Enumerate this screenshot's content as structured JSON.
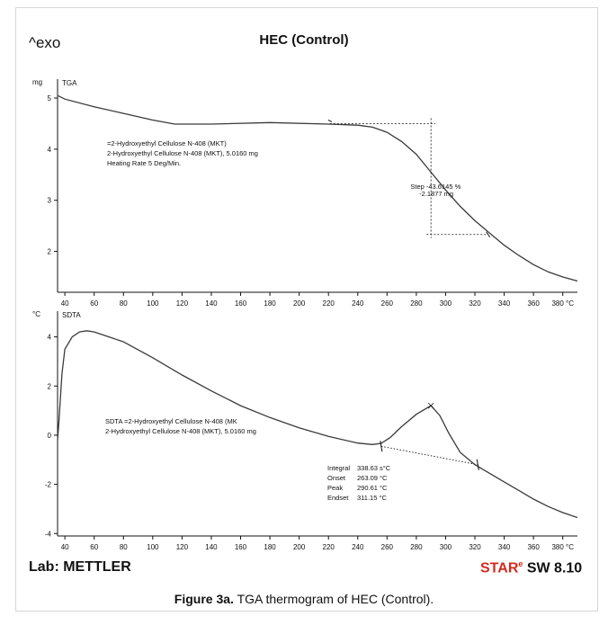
{
  "header": {
    "exo_label": "^exo",
    "title": "HEC (Control)"
  },
  "footer": {
    "lab": "Lab: METTLER",
    "software_star": "STAR",
    "software_reg": "e",
    "software_version": " SW 8.10"
  },
  "caption": {
    "label": "Figure 3a.",
    "text": " TGA thermogram of HEC (Control)."
  },
  "colors": {
    "curve": "#3a3a3a",
    "axis": "#111111",
    "accent_red": "#d42a1e"
  },
  "chart_data": [
    {
      "type": "line",
      "series_label": "TGA",
      "yunit": "mg",
      "xunit": "°C",
      "xlim": [
        35,
        390
      ],
      "ylim": [
        1.2,
        5.3
      ],
      "xticks": [
        "40",
        "60",
        "80",
        "100",
        "120",
        "140",
        "160",
        "180",
        "200",
        "220",
        "240",
        "260",
        "280",
        "300",
        "320",
        "340",
        "360",
        "380 °C"
      ],
      "yticks": [
        "5",
        "4",
        "3",
        "2"
      ],
      "x": [
        35,
        40,
        60,
        80,
        100,
        115,
        140,
        180,
        220,
        240,
        250,
        260,
        270,
        280,
        290,
        300,
        310,
        320,
        330,
        340,
        350,
        360,
        370,
        380,
        390
      ],
      "y": [
        5.05,
        4.98,
        4.83,
        4.7,
        4.57,
        4.49,
        4.49,
        4.52,
        4.49,
        4.47,
        4.43,
        4.33,
        4.15,
        3.9,
        3.55,
        3.2,
        2.88,
        2.6,
        2.36,
        2.12,
        1.92,
        1.74,
        1.6,
        1.5,
        1.42
      ],
      "annotations": {
        "sample_lines": [
          "=2-Hydroxyethyl Cellulose N-408 (MKT)",
          "2-Hydroxyethyl Cellulose N-408 (MKT), 5.0160 mg",
          "Heating Rate 5 Deg/Min."
        ],
        "step_line1": "Step  -43.6145 %",
        "step_line2": "-2.1877 mg",
        "step_start_x": 221,
        "step_end_x": 329,
        "step_mid_x": 290,
        "step_upper_y": 4.5,
        "step_lower_y": 2.33
      }
    },
    {
      "type": "line",
      "series_label": "SDTA",
      "yunit": "°C",
      "xunit": "°C",
      "xlim": [
        35,
        390
      ],
      "ylim": [
        -4.1,
        4.9
      ],
      "xticks": [
        "40",
        "60",
        "80",
        "100",
        "120",
        "140",
        "160",
        "180",
        "200",
        "220",
        "240",
        "260",
        "280",
        "300",
        "320",
        "340",
        "360",
        "380 °C"
      ],
      "yticks": [
        "4",
        "2",
        "0",
        "-2",
        "-4"
      ],
      "x": [
        35,
        36,
        38,
        40,
        45,
        50,
        55,
        60,
        80,
        100,
        120,
        140,
        160,
        180,
        200,
        220,
        240,
        250,
        256,
        262,
        270,
        280,
        290,
        296,
        302,
        310,
        320,
        330,
        340,
        350,
        360,
        370,
        380,
        390
      ],
      "y": [
        -0.2,
        0.6,
        2.5,
        3.5,
        4.0,
        4.2,
        4.25,
        4.2,
        3.8,
        3.15,
        2.45,
        1.8,
        1.2,
        0.72,
        0.3,
        -0.05,
        -0.32,
        -0.38,
        -0.33,
        -0.1,
        0.35,
        0.85,
        1.2,
        0.8,
        0.1,
        -0.7,
        -1.2,
        -1.55,
        -1.9,
        -2.25,
        -2.6,
        -2.9,
        -3.15,
        -3.35
      ],
      "annotations": {
        "sample_lines": [
          "SDTA =2-Hydroxyethyl Cellulose N-408 (MK",
          "2-Hydroxyethyl Cellulose N-408 (MKT), 5.0160 mg"
        ],
        "integral_label": "Integral",
        "integral_value": "338.63 s°C",
        "onset_label": "Onset",
        "onset_value": "263.09 °C",
        "peak_label": "Peak",
        "peak_value": "290.61 °C",
        "endset_label": "Endset",
        "endset_value": "311.15 °C",
        "baseline_start": [
          256,
          -0.45
        ],
        "baseline_end": [
          322,
          -1.2
        ],
        "peak_point": [
          290,
          1.2
        ]
      }
    }
  ]
}
